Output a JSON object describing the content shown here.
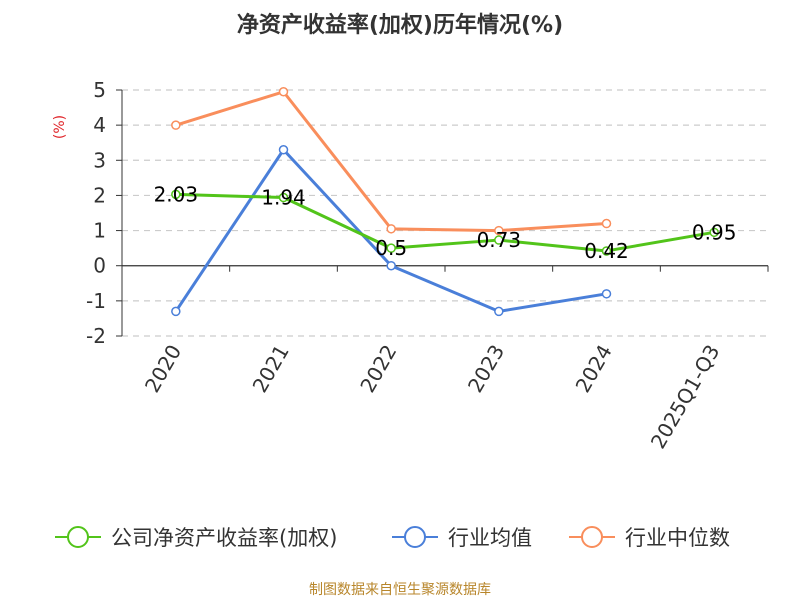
{
  "chart_data": {
    "type": "line",
    "title": "净资产收益率(加权)历年情况(%)",
    "ylabel": "(%)",
    "xlabel": "",
    "categories": [
      "2020",
      "2021",
      "2022",
      "2023",
      "2024",
      "2025Q1-Q3"
    ],
    "ylim": [
      -2,
      5
    ],
    "yticks": [
      5,
      4,
      3,
      2,
      1,
      0,
      -1,
      -2
    ],
    "series": [
      {
        "name": "公司净资产收益率(加权)",
        "color": "#52c41a",
        "values": [
          2.03,
          1.94,
          0.5,
          0.73,
          0.42,
          0.95
        ],
        "labels": [
          "2.03",
          "1.94",
          "0.5",
          "0.73",
          "0.42",
          "0.95"
        ]
      },
      {
        "name": "行业均值",
        "color": "#4a7fd9",
        "values": [
          -1.3,
          3.3,
          0.0,
          -1.3,
          -0.8,
          null
        ]
      },
      {
        "name": "行业中位数",
        "color": "#f98e5c",
        "values": [
          4.0,
          4.95,
          1.05,
          1.0,
          1.2,
          null
        ]
      }
    ],
    "grid": true,
    "legend": "bottom-center",
    "source": "制图数据来自恒生聚源数据库"
  }
}
